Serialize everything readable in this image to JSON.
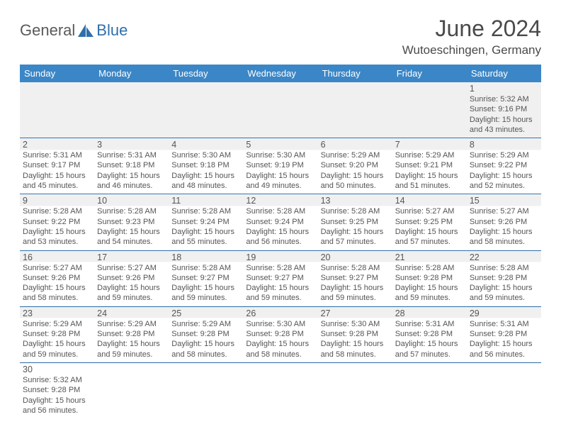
{
  "logo": {
    "text1": "General",
    "text2": "Blue",
    "shape_color": "#2f6fab"
  },
  "title": "June 2024",
  "location": "Wutoeschingen, Germany",
  "header_bg": "#3b86c6",
  "header_fg": "#ffffff",
  "border_color": "#2f6fab",
  "shade_bg": "#f0f0f0",
  "text_color": "#555555",
  "day_headers": [
    "Sunday",
    "Monday",
    "Tuesday",
    "Wednesday",
    "Thursday",
    "Friday",
    "Saturday"
  ],
  "weeks": [
    [
      null,
      null,
      null,
      null,
      null,
      null,
      {
        "n": "1",
        "sr": "5:32 AM",
        "ss": "9:16 PM",
        "dl": "15 hours and 43 minutes."
      }
    ],
    [
      {
        "n": "2",
        "sr": "5:31 AM",
        "ss": "9:17 PM",
        "dl": "15 hours and 45 minutes."
      },
      {
        "n": "3",
        "sr": "5:31 AM",
        "ss": "9:18 PM",
        "dl": "15 hours and 46 minutes."
      },
      {
        "n": "4",
        "sr": "5:30 AM",
        "ss": "9:18 PM",
        "dl": "15 hours and 48 minutes."
      },
      {
        "n": "5",
        "sr": "5:30 AM",
        "ss": "9:19 PM",
        "dl": "15 hours and 49 minutes."
      },
      {
        "n": "6",
        "sr": "5:29 AM",
        "ss": "9:20 PM",
        "dl": "15 hours and 50 minutes."
      },
      {
        "n": "7",
        "sr": "5:29 AM",
        "ss": "9:21 PM",
        "dl": "15 hours and 51 minutes."
      },
      {
        "n": "8",
        "sr": "5:29 AM",
        "ss": "9:22 PM",
        "dl": "15 hours and 52 minutes."
      }
    ],
    [
      {
        "n": "9",
        "sr": "5:28 AM",
        "ss": "9:22 PM",
        "dl": "15 hours and 53 minutes."
      },
      {
        "n": "10",
        "sr": "5:28 AM",
        "ss": "9:23 PM",
        "dl": "15 hours and 54 minutes."
      },
      {
        "n": "11",
        "sr": "5:28 AM",
        "ss": "9:24 PM",
        "dl": "15 hours and 55 minutes."
      },
      {
        "n": "12",
        "sr": "5:28 AM",
        "ss": "9:24 PM",
        "dl": "15 hours and 56 minutes."
      },
      {
        "n": "13",
        "sr": "5:28 AM",
        "ss": "9:25 PM",
        "dl": "15 hours and 57 minutes."
      },
      {
        "n": "14",
        "sr": "5:27 AM",
        "ss": "9:25 PM",
        "dl": "15 hours and 57 minutes."
      },
      {
        "n": "15",
        "sr": "5:27 AM",
        "ss": "9:26 PM",
        "dl": "15 hours and 58 minutes."
      }
    ],
    [
      {
        "n": "16",
        "sr": "5:27 AM",
        "ss": "9:26 PM",
        "dl": "15 hours and 58 minutes."
      },
      {
        "n": "17",
        "sr": "5:27 AM",
        "ss": "9:26 PM",
        "dl": "15 hours and 59 minutes."
      },
      {
        "n": "18",
        "sr": "5:28 AM",
        "ss": "9:27 PM",
        "dl": "15 hours and 59 minutes."
      },
      {
        "n": "19",
        "sr": "5:28 AM",
        "ss": "9:27 PM",
        "dl": "15 hours and 59 minutes."
      },
      {
        "n": "20",
        "sr": "5:28 AM",
        "ss": "9:27 PM",
        "dl": "15 hours and 59 minutes."
      },
      {
        "n": "21",
        "sr": "5:28 AM",
        "ss": "9:28 PM",
        "dl": "15 hours and 59 minutes."
      },
      {
        "n": "22",
        "sr": "5:28 AM",
        "ss": "9:28 PM",
        "dl": "15 hours and 59 minutes."
      }
    ],
    [
      {
        "n": "23",
        "sr": "5:29 AM",
        "ss": "9:28 PM",
        "dl": "15 hours and 59 minutes."
      },
      {
        "n": "24",
        "sr": "5:29 AM",
        "ss": "9:28 PM",
        "dl": "15 hours and 59 minutes."
      },
      {
        "n": "25",
        "sr": "5:29 AM",
        "ss": "9:28 PM",
        "dl": "15 hours and 58 minutes."
      },
      {
        "n": "26",
        "sr": "5:30 AM",
        "ss": "9:28 PM",
        "dl": "15 hours and 58 minutes."
      },
      {
        "n": "27",
        "sr": "5:30 AM",
        "ss": "9:28 PM",
        "dl": "15 hours and 58 minutes."
      },
      {
        "n": "28",
        "sr": "5:31 AM",
        "ss": "9:28 PM",
        "dl": "15 hours and 57 minutes."
      },
      {
        "n": "29",
        "sr": "5:31 AM",
        "ss": "9:28 PM",
        "dl": "15 hours and 56 minutes."
      }
    ],
    [
      {
        "n": "30",
        "sr": "5:32 AM",
        "ss": "9:28 PM",
        "dl": "15 hours and 56 minutes."
      },
      null,
      null,
      null,
      null,
      null,
      null
    ]
  ],
  "labels": {
    "sunrise": "Sunrise:",
    "sunset": "Sunset:",
    "daylight": "Daylight:"
  }
}
